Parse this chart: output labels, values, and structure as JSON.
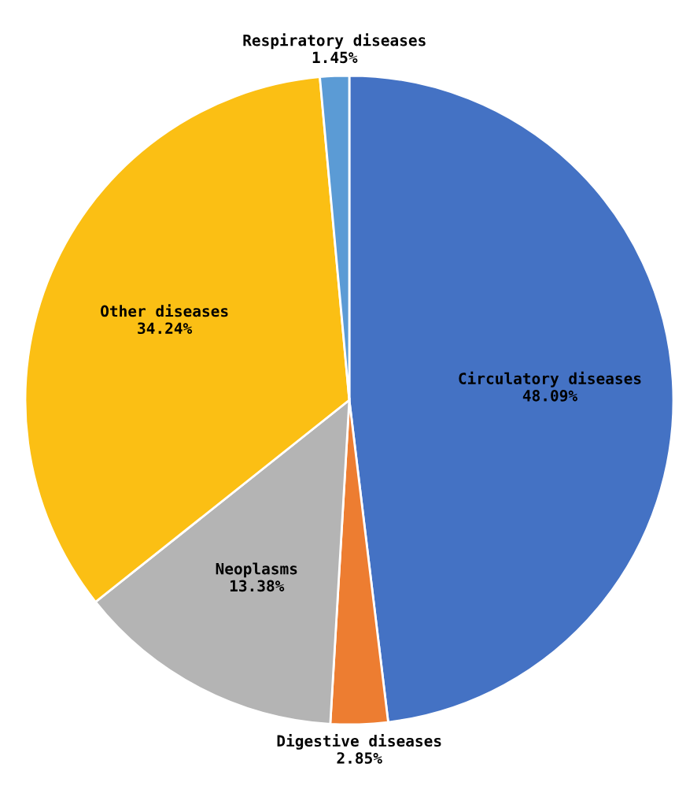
{
  "chart_data": {
    "type": "pie",
    "categories": [
      "Circulatory diseases",
      "Digestive diseases",
      "Neoplasms",
      "Other diseases",
      "Respiratory diseases"
    ],
    "values": [
      48.09,
      2.85,
      13.38,
      34.24,
      1.45
    ],
    "colors": [
      "#4472c4",
      "#ed7d31",
      "#b4b4b4",
      "#fbbf14",
      "#5b9bd5"
    ],
    "value_labels": [
      "48.09%",
      "2.85%",
      "13.38%",
      "34.24%",
      "1.45%"
    ],
    "legend": false
  }
}
